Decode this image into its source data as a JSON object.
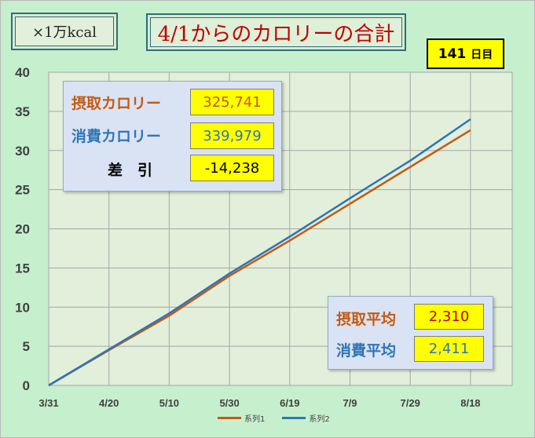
{
  "header": {
    "unit_label": "×1万kcal",
    "title": "4/1からのカロリーの合計",
    "days_value": "141",
    "days_unit": "日目"
  },
  "summary_top": {
    "intake_label": "摂取カロリー",
    "intake_value": "325,741",
    "burn_label": "消費カロリー",
    "burn_value": "339,979",
    "diff_label": "差　引",
    "diff_value": "-14,238"
  },
  "summary_bottom": {
    "intake_avg_label": "摂取平均",
    "intake_avg_value": "2,310",
    "burn_avg_label": "消費平均",
    "burn_avg_value": "2,411"
  },
  "colors": {
    "intake": "#c55a11",
    "burn": "#2e75b6",
    "plot_bg": "#e2efda",
    "chart_bg": "#c6efce",
    "diff_text": "#000000",
    "avg_burn_text": "#2e75b6",
    "avg_intake_text": "#c00000"
  },
  "chart_data": {
    "type": "line",
    "x": [
      "3/31",
      "4/20",
      "5/10",
      "5/30",
      "6/19",
      "7/9",
      "7/29",
      "8/18"
    ],
    "x_ticks": [
      "3/31",
      "4/20",
      "5/10",
      "5/30",
      "6/19",
      "7/9",
      "7/29",
      "8/18"
    ],
    "y_ticks": [
      0,
      5,
      10,
      15,
      20,
      25,
      30,
      35,
      40
    ],
    "ylim": [
      0,
      40
    ],
    "grid": true,
    "legend_position": "bottom",
    "series": [
      {
        "name": "系列1",
        "values": [
          0,
          4.5,
          8.9,
          14.0,
          18.5,
          23.2,
          27.9,
          32.6
        ]
      },
      {
        "name": "系列2",
        "values": [
          0,
          4.6,
          9.2,
          14.3,
          19.0,
          23.9,
          28.7,
          34.0
        ]
      }
    ]
  }
}
